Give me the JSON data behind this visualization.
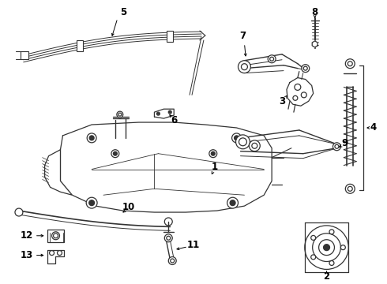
{
  "bg_color": "#ffffff",
  "line_color": "#333333",
  "label_color": "#000000",
  "fig_w": 4.9,
  "fig_h": 3.6,
  "dpi": 100
}
